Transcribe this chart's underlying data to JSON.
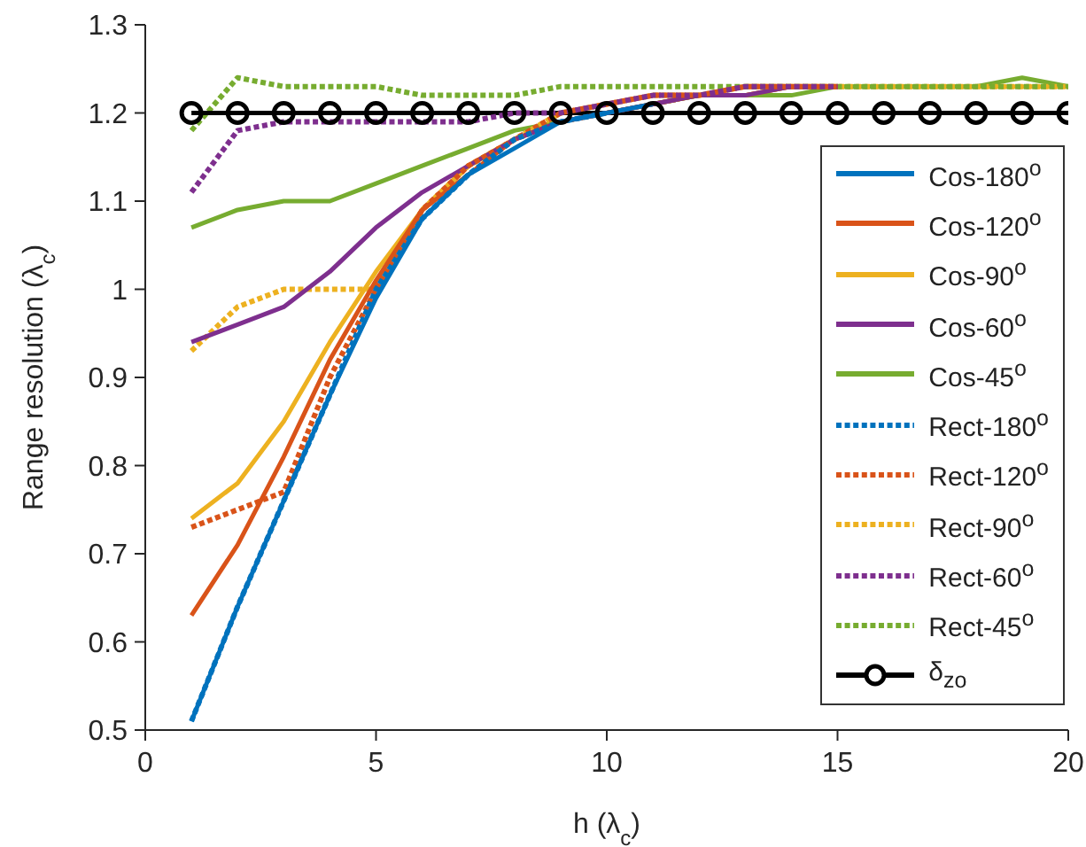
{
  "chart_data": {
    "type": "line",
    "xlabel": "h (λ$_{c}$)",
    "ylabel": "Range resolution (λ$_{c}$)",
    "x": [
      1,
      2,
      3,
      4,
      5,
      6,
      7,
      8,
      9,
      10,
      11,
      12,
      13,
      14,
      15,
      16,
      17,
      18,
      19,
      20
    ],
    "xlim": [
      0,
      20
    ],
    "xticks": [
      0,
      5,
      10,
      15,
      20
    ],
    "ylim": [
      0.5,
      1.3
    ],
    "yticks": [
      0.5,
      0.6,
      0.7,
      0.8,
      0.9,
      1,
      1.1,
      1.2,
      1.3
    ],
    "grid": false,
    "legend": "right",
    "marker": "none",
    "series": [
      {
        "name": "Cos-180$^{o}$",
        "color": "#0072bd",
        "line_style": "solid",
        "values": [
          0.51,
          0.64,
          0.76,
          0.88,
          0.99,
          1.08,
          1.13,
          1.16,
          1.19,
          1.2,
          1.21,
          null,
          null,
          null,
          null,
          null,
          null,
          null,
          null,
          null
        ]
      },
      {
        "name": "Cos-120$^{o}$",
        "color": "#d95319",
        "line_style": "solid",
        "values": [
          0.63,
          0.71,
          0.81,
          0.92,
          1.01,
          1.09,
          1.13,
          1.17,
          1.19,
          1.2,
          1.21,
          1.22,
          1.22,
          1.23,
          1.23,
          null,
          null,
          null,
          null,
          null
        ]
      },
      {
        "name": "Cos-90$^{o}$",
        "color": "#edb120",
        "line_style": "solid",
        "values": [
          0.74,
          0.78,
          0.85,
          0.94,
          1.02,
          1.09,
          1.14,
          1.17,
          1.19,
          1.2,
          1.21,
          1.22,
          1.22,
          1.23,
          1.23,
          1.23,
          1.23,
          1.23,
          1.23,
          1.23
        ]
      },
      {
        "name": "Cos-60$^{o}$",
        "color": "#7e2f8e",
        "line_style": "solid",
        "values": [
          0.94,
          0.96,
          0.98,
          1.02,
          1.07,
          1.11,
          1.14,
          1.17,
          1.19,
          1.2,
          1.21,
          1.22,
          1.22,
          1.23,
          1.23,
          null,
          null,
          null,
          null,
          null
        ]
      },
      {
        "name": "Cos-45$^{o}$",
        "color": "#77ac30",
        "line_style": "solid",
        "values": [
          1.07,
          1.09,
          1.1,
          1.1,
          1.12,
          1.14,
          1.16,
          1.18,
          1.19,
          1.2,
          1.21,
          1.22,
          1.22,
          1.22,
          1.23,
          1.23,
          1.23,
          1.23,
          1.24,
          1.23
        ]
      },
      {
        "name": "Rect-180$^{o}$",
        "color": "#0072bd",
        "line_style": "dotted",
        "values": [
          0.51,
          0.64,
          0.76,
          0.88,
          1,
          1.08,
          1.13,
          1.17,
          1.19,
          1.2,
          null,
          null,
          null,
          null,
          null,
          null,
          null,
          null,
          null,
          null
        ]
      },
      {
        "name": "Rect-120$^{o}$",
        "color": "#d95319",
        "line_style": "dotted",
        "values": [
          0.73,
          0.75,
          0.77,
          0.9,
          1,
          1.09,
          1.14,
          1.17,
          1.2,
          1.21,
          1.22,
          1.22,
          1.23,
          1.23,
          1.23,
          null,
          null,
          null,
          null,
          null
        ]
      },
      {
        "name": "Rect-90$^{o}$",
        "color": "#edb120",
        "line_style": "dotted",
        "values": [
          0.93,
          0.98,
          1,
          1,
          1,
          1.09,
          1.14,
          1.17,
          1.2,
          1.21,
          1.22,
          1.22,
          1.23,
          1.23,
          1.23,
          1.23,
          1.23,
          1.23,
          1.23,
          1.23
        ]
      },
      {
        "name": "Rect-60$^{o}$",
        "color": "#7e2f8e",
        "line_style": "dotted",
        "values": [
          1.11,
          1.18,
          1.19,
          1.19,
          1.19,
          1.19,
          1.19,
          1.2,
          1.2,
          1.21,
          1.22,
          1.22,
          1.23,
          1.23,
          1.23,
          null,
          null,
          null,
          null,
          null
        ]
      },
      {
        "name": "Rect-45$^{o}$",
        "color": "#77ac30",
        "line_style": "dotted",
        "values": [
          1.18,
          1.24,
          1.23,
          1.23,
          1.23,
          1.22,
          1.22,
          1.22,
          1.23,
          1.23,
          1.23,
          1.23,
          1.23,
          1.23,
          1.23,
          1.23,
          1.23,
          1.23,
          1.23,
          1.23
        ]
      },
      {
        "name": "δ$_{zo}$",
        "color": "#000000",
        "line_style": "solid",
        "marker": "circle",
        "values": [
          1.2,
          1.2,
          1.2,
          1.2,
          1.2,
          1.2,
          1.2,
          1.2,
          1.2,
          1.2,
          1.2,
          1.2,
          1.2,
          1.2,
          1.2,
          1.2,
          1.2,
          1.2,
          1.2,
          1.2
        ]
      }
    ]
  }
}
